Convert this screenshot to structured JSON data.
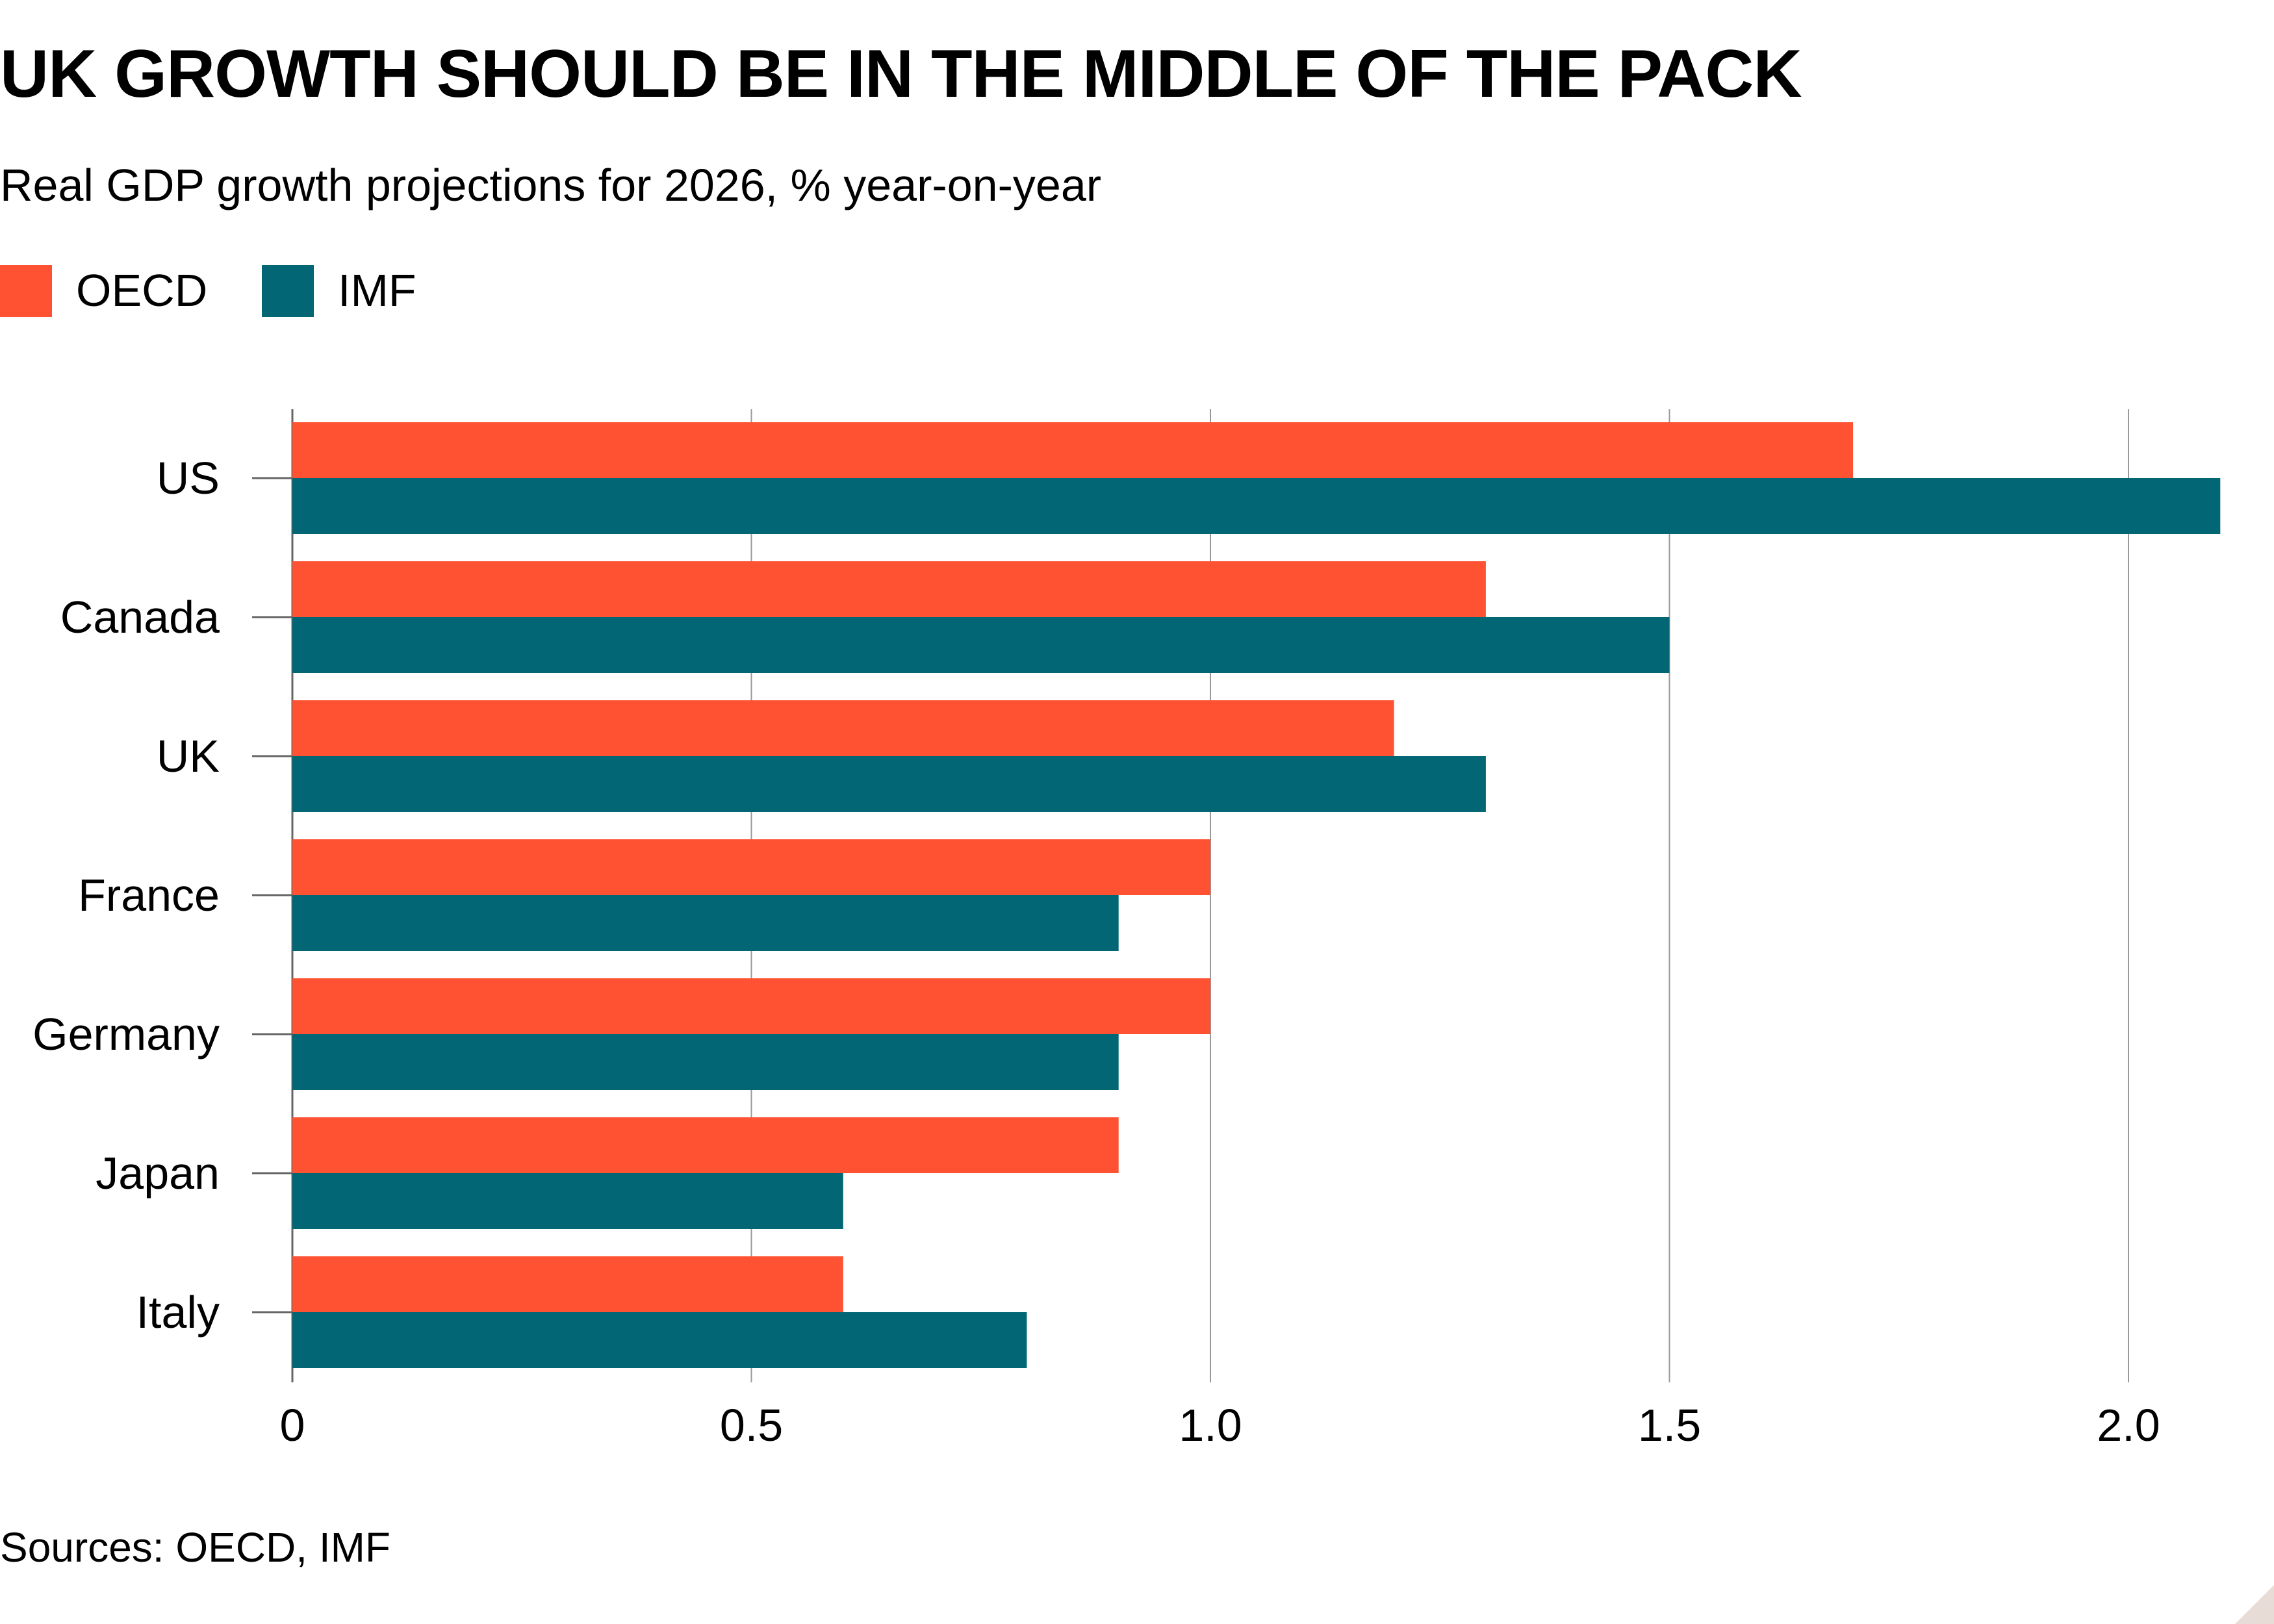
{
  "header": {
    "title": "UK GROWTH SHOULD BE IN THE MIDDLE OF THE PACK",
    "subtitle": "Real GDP growth projections for 2026, % year-on-year"
  },
  "footer": {
    "source": "Sources: OECD, IMF"
  },
  "colors": {
    "oecd": "#ff5233",
    "imf": "#026675",
    "gridline": "#999999",
    "tick": "#666666"
  },
  "chart_data": {
    "type": "bar",
    "orientation": "horizontal",
    "title": "UK GROWTH SHOULD BE IN THE MIDDLE OF THE PACK",
    "subtitle": "Real GDP growth projections for 2026, % year-on-year",
    "categories": [
      "US",
      "Canada",
      "UK",
      "France",
      "Germany",
      "Japan",
      "Italy"
    ],
    "series": [
      {
        "name": "OECD",
        "values": [
          1.7,
          1.3,
          1.2,
          1.0,
          1.0,
          0.9,
          0.6
        ]
      },
      {
        "name": "IMF",
        "values": [
          2.1,
          1.5,
          1.3,
          0.9,
          0.9,
          0.6,
          0.8
        ]
      }
    ],
    "xticks": [
      0,
      0.5,
      1.0,
      1.5,
      2.0
    ],
    "xtick_labels": [
      "0",
      "0.5",
      "1.0",
      "1.5",
      "2.0"
    ],
    "xlim": [
      0,
      2.1
    ],
    "grid": true,
    "legend_position": "top-left",
    "source": "Sources: OECD, IMF"
  }
}
